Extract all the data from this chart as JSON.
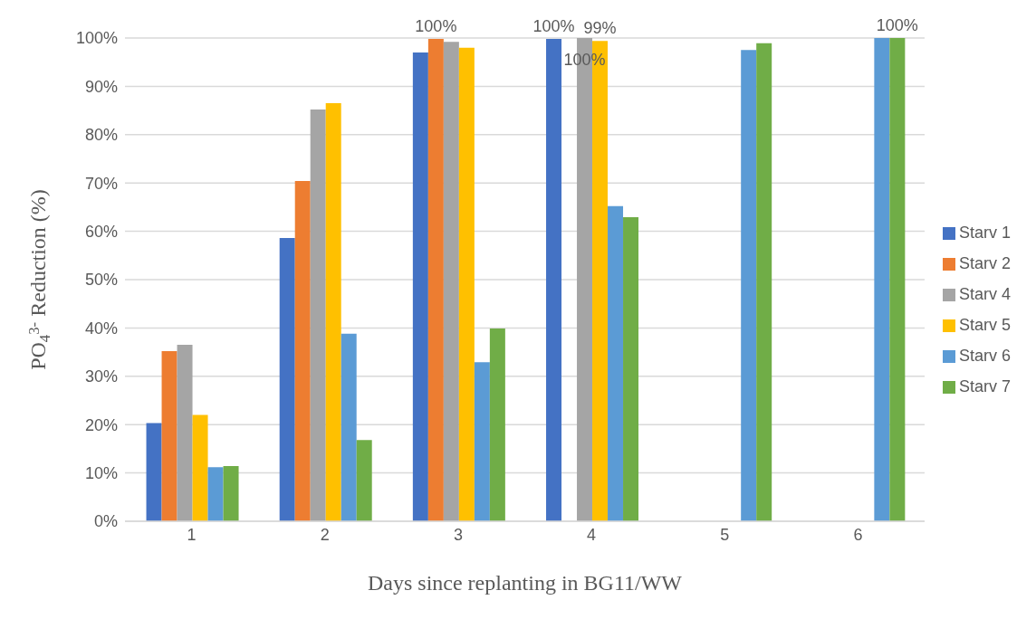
{
  "chart_data": {
    "type": "bar",
    "xlabel": "Days since replanting in BG11/WW",
    "ylabel": "PO$_{4}$$^{3-}$ Reduction (%)",
    "categories": [
      "1",
      "2",
      "3",
      "4",
      "5",
      "6"
    ],
    "series": [
      {
        "name": "Starv 1",
        "color": "#4472c4",
        "values": [
          20.3,
          58.6,
          97,
          99.8,
          null,
          null
        ],
        "value_labels": [
          null,
          null,
          null,
          "100%",
          null,
          null
        ]
      },
      {
        "name": "Starv 2",
        "color": "#ed7d31",
        "values": [
          35.2,
          70.4,
          99.8,
          null,
          null,
          null
        ],
        "value_labels": [
          null,
          null,
          "100%",
          null,
          null,
          null
        ]
      },
      {
        "name": "Starv 4",
        "color": "#a5a5a5",
        "values": [
          36.5,
          85.2,
          99.2,
          100,
          null,
          null
        ],
        "value_labels": [
          null,
          null,
          null,
          "100%",
          null,
          null
        ]
      },
      {
        "name": "Starv 5",
        "color": "#ffc000",
        "values": [
          22,
          86.5,
          98,
          99.4,
          null,
          null
        ],
        "value_labels": [
          null,
          null,
          null,
          "99%",
          null,
          null
        ]
      },
      {
        "name": "Starv 6",
        "color": "#5b9bd5",
        "values": [
          11.2,
          38.8,
          32.9,
          65.2,
          97.5,
          100
        ],
        "value_labels": [
          null,
          null,
          null,
          null,
          null,
          null
        ]
      },
      {
        "name": "Starv 7",
        "color": "#70ad47",
        "values": [
          11.4,
          16.8,
          39.9,
          62.9,
          98.9,
          100
        ],
        "value_labels": [
          null,
          null,
          null,
          null,
          null,
          "100%"
        ]
      }
    ],
    "ylim": [
      0,
      100
    ],
    "yticks": [
      {
        "value": 0,
        "label": "0%"
      },
      {
        "value": 10,
        "label": "10%"
      },
      {
        "value": 20,
        "label": "20%"
      },
      {
        "value": 30,
        "label": "30%"
      },
      {
        "value": 40,
        "label": "40%"
      },
      {
        "value": 50,
        "label": "50%"
      },
      {
        "value": 60,
        "label": "60%"
      },
      {
        "value": 70,
        "label": "70%"
      },
      {
        "value": 80,
        "label": "80%"
      },
      {
        "value": 90,
        "label": "90%"
      },
      {
        "value": 100,
        "label": "100%"
      }
    ],
    "grid": "y",
    "legend": "right"
  }
}
